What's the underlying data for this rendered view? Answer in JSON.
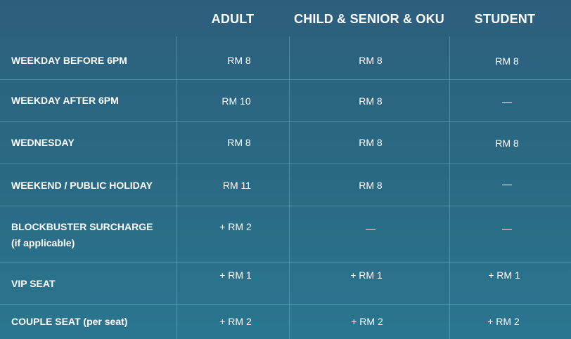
{
  "headers": [
    "ADULT",
    "CHILD & SENIOR & OKU",
    "STUDENT"
  ],
  "rows": [
    {
      "label": "WEEKDAY BEFORE 6PM",
      "adult": "RM 8",
      "child": "RM 8",
      "student": "RM 8"
    },
    {
      "label": "WEEKDAY AFTER 6PM",
      "adult": "RM 10",
      "child": "RM 8",
      "student": "—"
    },
    {
      "label": "WEDNESDAY",
      "adult": "RM 8",
      "child": "RM 8",
      "student": "RM 8"
    },
    {
      "label": "WEEKEND / PUBLIC HOLIDAY",
      "adult": "RM 11",
      "child": "RM 8",
      "student": "—"
    },
    {
      "label": "BLOCKBUSTER SURCHARGE",
      "sublabel": "(if applicable)",
      "adult": "+ RM 2",
      "child": "—",
      "student": "—"
    },
    {
      "label": "VIP SEAT",
      "adult": "+ RM 1",
      "child": "+ RM 1",
      "student": "+ RM 1"
    },
    {
      "label": "COUPLE SEAT (per seat)",
      "adult": "+ RM 2",
      "child": "+ RM 2",
      "student": "+ RM 2"
    }
  ],
  "colors": {
    "background_top": "#2c5f7d",
    "background_bottom": "#2a7690",
    "text": "#ffffff"
  }
}
